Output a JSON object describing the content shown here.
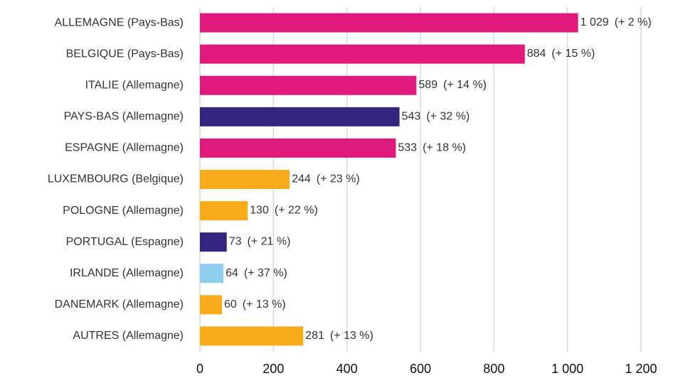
{
  "chart_data": {
    "type": "bar",
    "orientation": "horizontal",
    "categories": [
      "ALLEMAGNE (Pays-Bas)",
      "BELGIQUE (Pays-Bas)",
      "ITALIE (Allemagne)",
      "PAYS-BAS (Allemagne)",
      "ESPAGNE (Allemagne)",
      "LUXEMBOURG (Belgique)",
      "POLOGNE (Allemagne)",
      "PORTUGAL (Espagne)",
      "IRLANDE (Allemagne)",
      "DANEMARK (Allemagne)",
      "AUTRES (Allemagne)"
    ],
    "values": [
      1029,
      884,
      589,
      543,
      533,
      244,
      130,
      73,
      64,
      60,
      281
    ],
    "value_labels": [
      "1 029",
      "884",
      "589",
      "543",
      "533",
      "244",
      "130",
      "73",
      "64",
      "60",
      "281"
    ],
    "changes": [
      "(+ 2 %)",
      "(+ 15 %)",
      "(+ 14 %)",
      "(+ 32 %)",
      "(+ 18 %)",
      "(+ 23 %)",
      "(+ 22 %)",
      "(+ 21 %)",
      "(+ 37 %)",
      "(+ 13 %)",
      "(+ 13 %)"
    ],
    "colors": [
      "#e0197d",
      "#e0197d",
      "#e0197d",
      "#35247d",
      "#e0197d",
      "#f9ac19",
      "#f9ac19",
      "#35247d",
      "#8ecfee",
      "#f9ac19",
      "#f9ac19"
    ],
    "xlim": [
      0,
      1200
    ],
    "xticks": [
      0,
      200,
      400,
      600,
      800,
      {
        "value": 1000,
        "label": "1 000"
      },
      {
        "value": 1200,
        "label": "1 200"
      }
    ],
    "grid": true
  }
}
